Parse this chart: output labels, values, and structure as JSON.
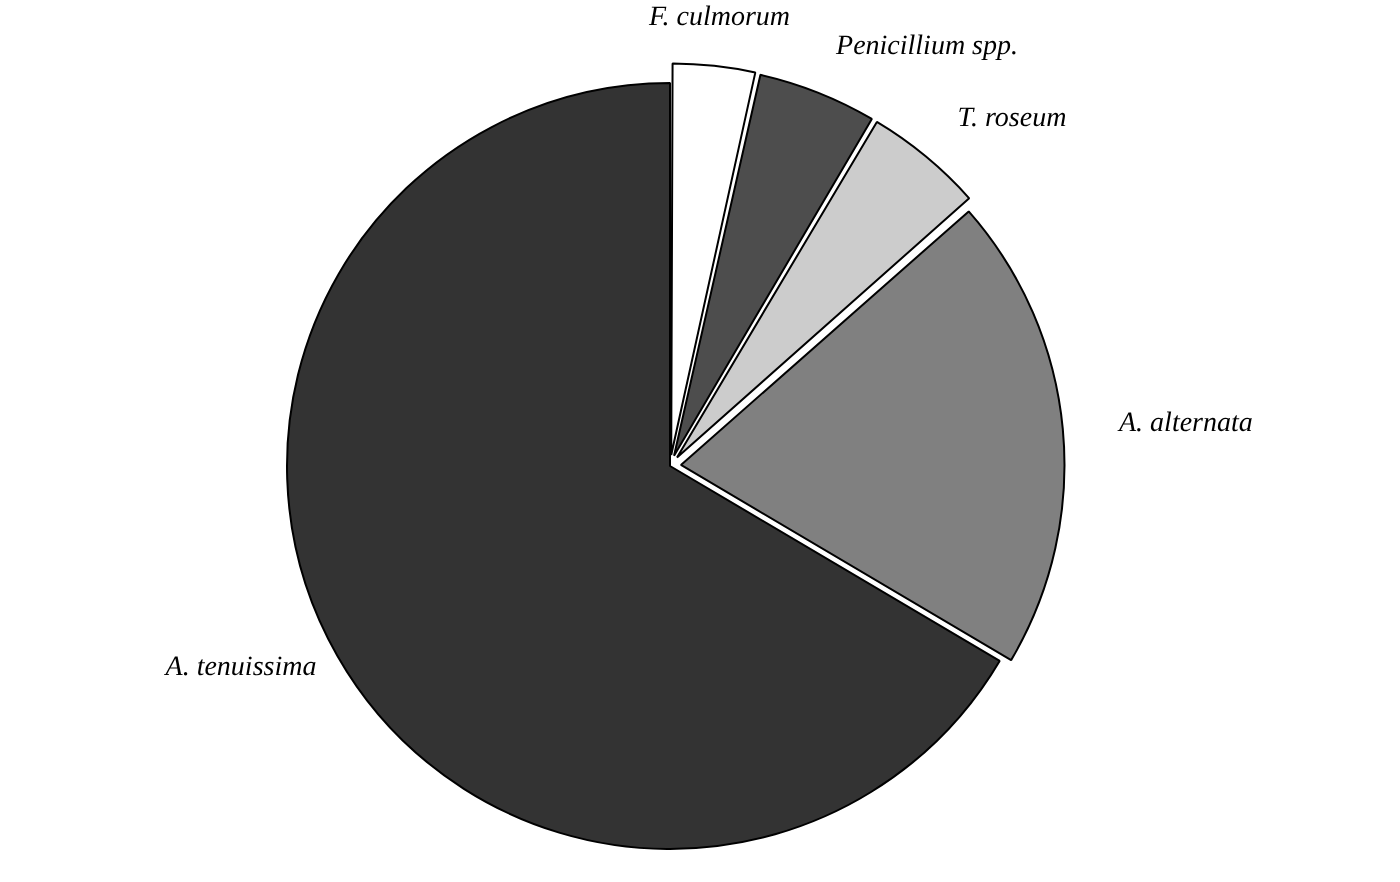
{
  "chart_data": {
    "type": "pie",
    "categories": [
      "F. culmorum",
      "Penicillium spp.",
      "T. roseum",
      "A. alternata",
      "A. tenuissima"
    ],
    "values": [
      3.5,
      5,
      5,
      20,
      66.5
    ],
    "colors": [
      "#ffffff",
      "#4d4d4d",
      "#cccccc",
      "#808080",
      "#333333"
    ],
    "legend": false
  }
}
